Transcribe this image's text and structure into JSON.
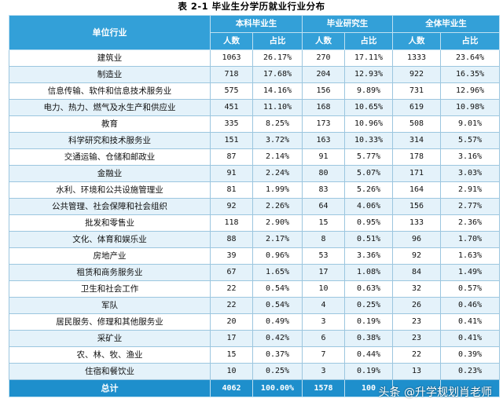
{
  "title": "表 2-1 毕业生分学历就业行业分布",
  "header": {
    "unit": "单位行业",
    "groups": [
      "本科毕业生",
      "毕业研究生",
      "全体毕业生"
    ],
    "sub": [
      "人数",
      "占比",
      "人数",
      "占比",
      "人数",
      "占比"
    ]
  },
  "rows": [
    {
      "name": "建筑业",
      "c": [
        "1063",
        "26.17%",
        "270",
        "17.11%",
        "1333",
        "23.64%"
      ]
    },
    {
      "name": "制造业",
      "c": [
        "718",
        "17.68%",
        "204",
        "12.93%",
        "922",
        "16.35%"
      ]
    },
    {
      "name": "信息传输、软件和信息技术服务业",
      "c": [
        "575",
        "14.16%",
        "156",
        "9.89%",
        "731",
        "12.96%"
      ]
    },
    {
      "name": "电力、热力、燃气及水生产和供应业",
      "c": [
        "451",
        "11.10%",
        "168",
        "10.65%",
        "619",
        "10.98%"
      ]
    },
    {
      "name": "教育",
      "c": [
        "335",
        "8.25%",
        "173",
        "10.96%",
        "508",
        "9.01%"
      ]
    },
    {
      "name": "科学研究和技术服务业",
      "c": [
        "151",
        "3.72%",
        "163",
        "10.33%",
        "314",
        "5.57%"
      ]
    },
    {
      "name": "交通运输、仓储和邮政业",
      "c": [
        "87",
        "2.14%",
        "91",
        "5.77%",
        "178",
        "3.16%"
      ]
    },
    {
      "name": "金融业",
      "c": [
        "91",
        "2.24%",
        "80",
        "5.07%",
        "171",
        "3.03%"
      ]
    },
    {
      "name": "水利、环境和公共设施管理业",
      "c": [
        "81",
        "1.99%",
        "83",
        "5.26%",
        "164",
        "2.91%"
      ]
    },
    {
      "name": "公共管理、社会保障和社会组织",
      "c": [
        "92",
        "2.26%",
        "64",
        "4.06%",
        "156",
        "2.77%"
      ]
    },
    {
      "name": "批发和零售业",
      "c": [
        "118",
        "2.90%",
        "15",
        "0.95%",
        "133",
        "2.36%"
      ]
    },
    {
      "name": "文化、体育和娱乐业",
      "c": [
        "88",
        "2.17%",
        "8",
        "0.51%",
        "96",
        "1.70%"
      ]
    },
    {
      "name": "房地产业",
      "c": [
        "39",
        "0.96%",
        "53",
        "3.36%",
        "92",
        "1.63%"
      ]
    },
    {
      "name": "租赁和商务服务业",
      "c": [
        "67",
        "1.65%",
        "17",
        "1.08%",
        "84",
        "1.49%"
      ]
    },
    {
      "name": "卫生和社会工作",
      "c": [
        "22",
        "0.54%",
        "10",
        "0.63%",
        "32",
        "0.57%"
      ]
    },
    {
      "name": "军队",
      "c": [
        "22",
        "0.54%",
        "4",
        "0.25%",
        "26",
        "0.46%"
      ]
    },
    {
      "name": "居民服务、修理和其他服务业",
      "c": [
        "20",
        "0.49%",
        "3",
        "0.19%",
        "23",
        "0.41%"
      ]
    },
    {
      "name": "采矿业",
      "c": [
        "17",
        "0.42%",
        "6",
        "0.38%",
        "23",
        "0.41%"
      ]
    },
    {
      "name": "农、林、牧、渔业",
      "c": [
        "15",
        "0.37%",
        "7",
        "0.44%",
        "22",
        "0.39%"
      ]
    },
    {
      "name": "住宿和餐饮业",
      "c": [
        "10",
        "0.25%",
        "3",
        "0.19%",
        "13",
        "0.23%"
      ]
    }
  ],
  "total": {
    "name": "总计",
    "c": [
      "4062",
      "100.00%",
      "1578",
      "100",
      "",
      ""
    ]
  },
  "watermark": "头条 @升学规划肖老师",
  "colors": {
    "header": "#33a0d8",
    "total": "#1e8fcc",
    "stripe": "#e4f2fa",
    "border": "#9cc6df"
  }
}
